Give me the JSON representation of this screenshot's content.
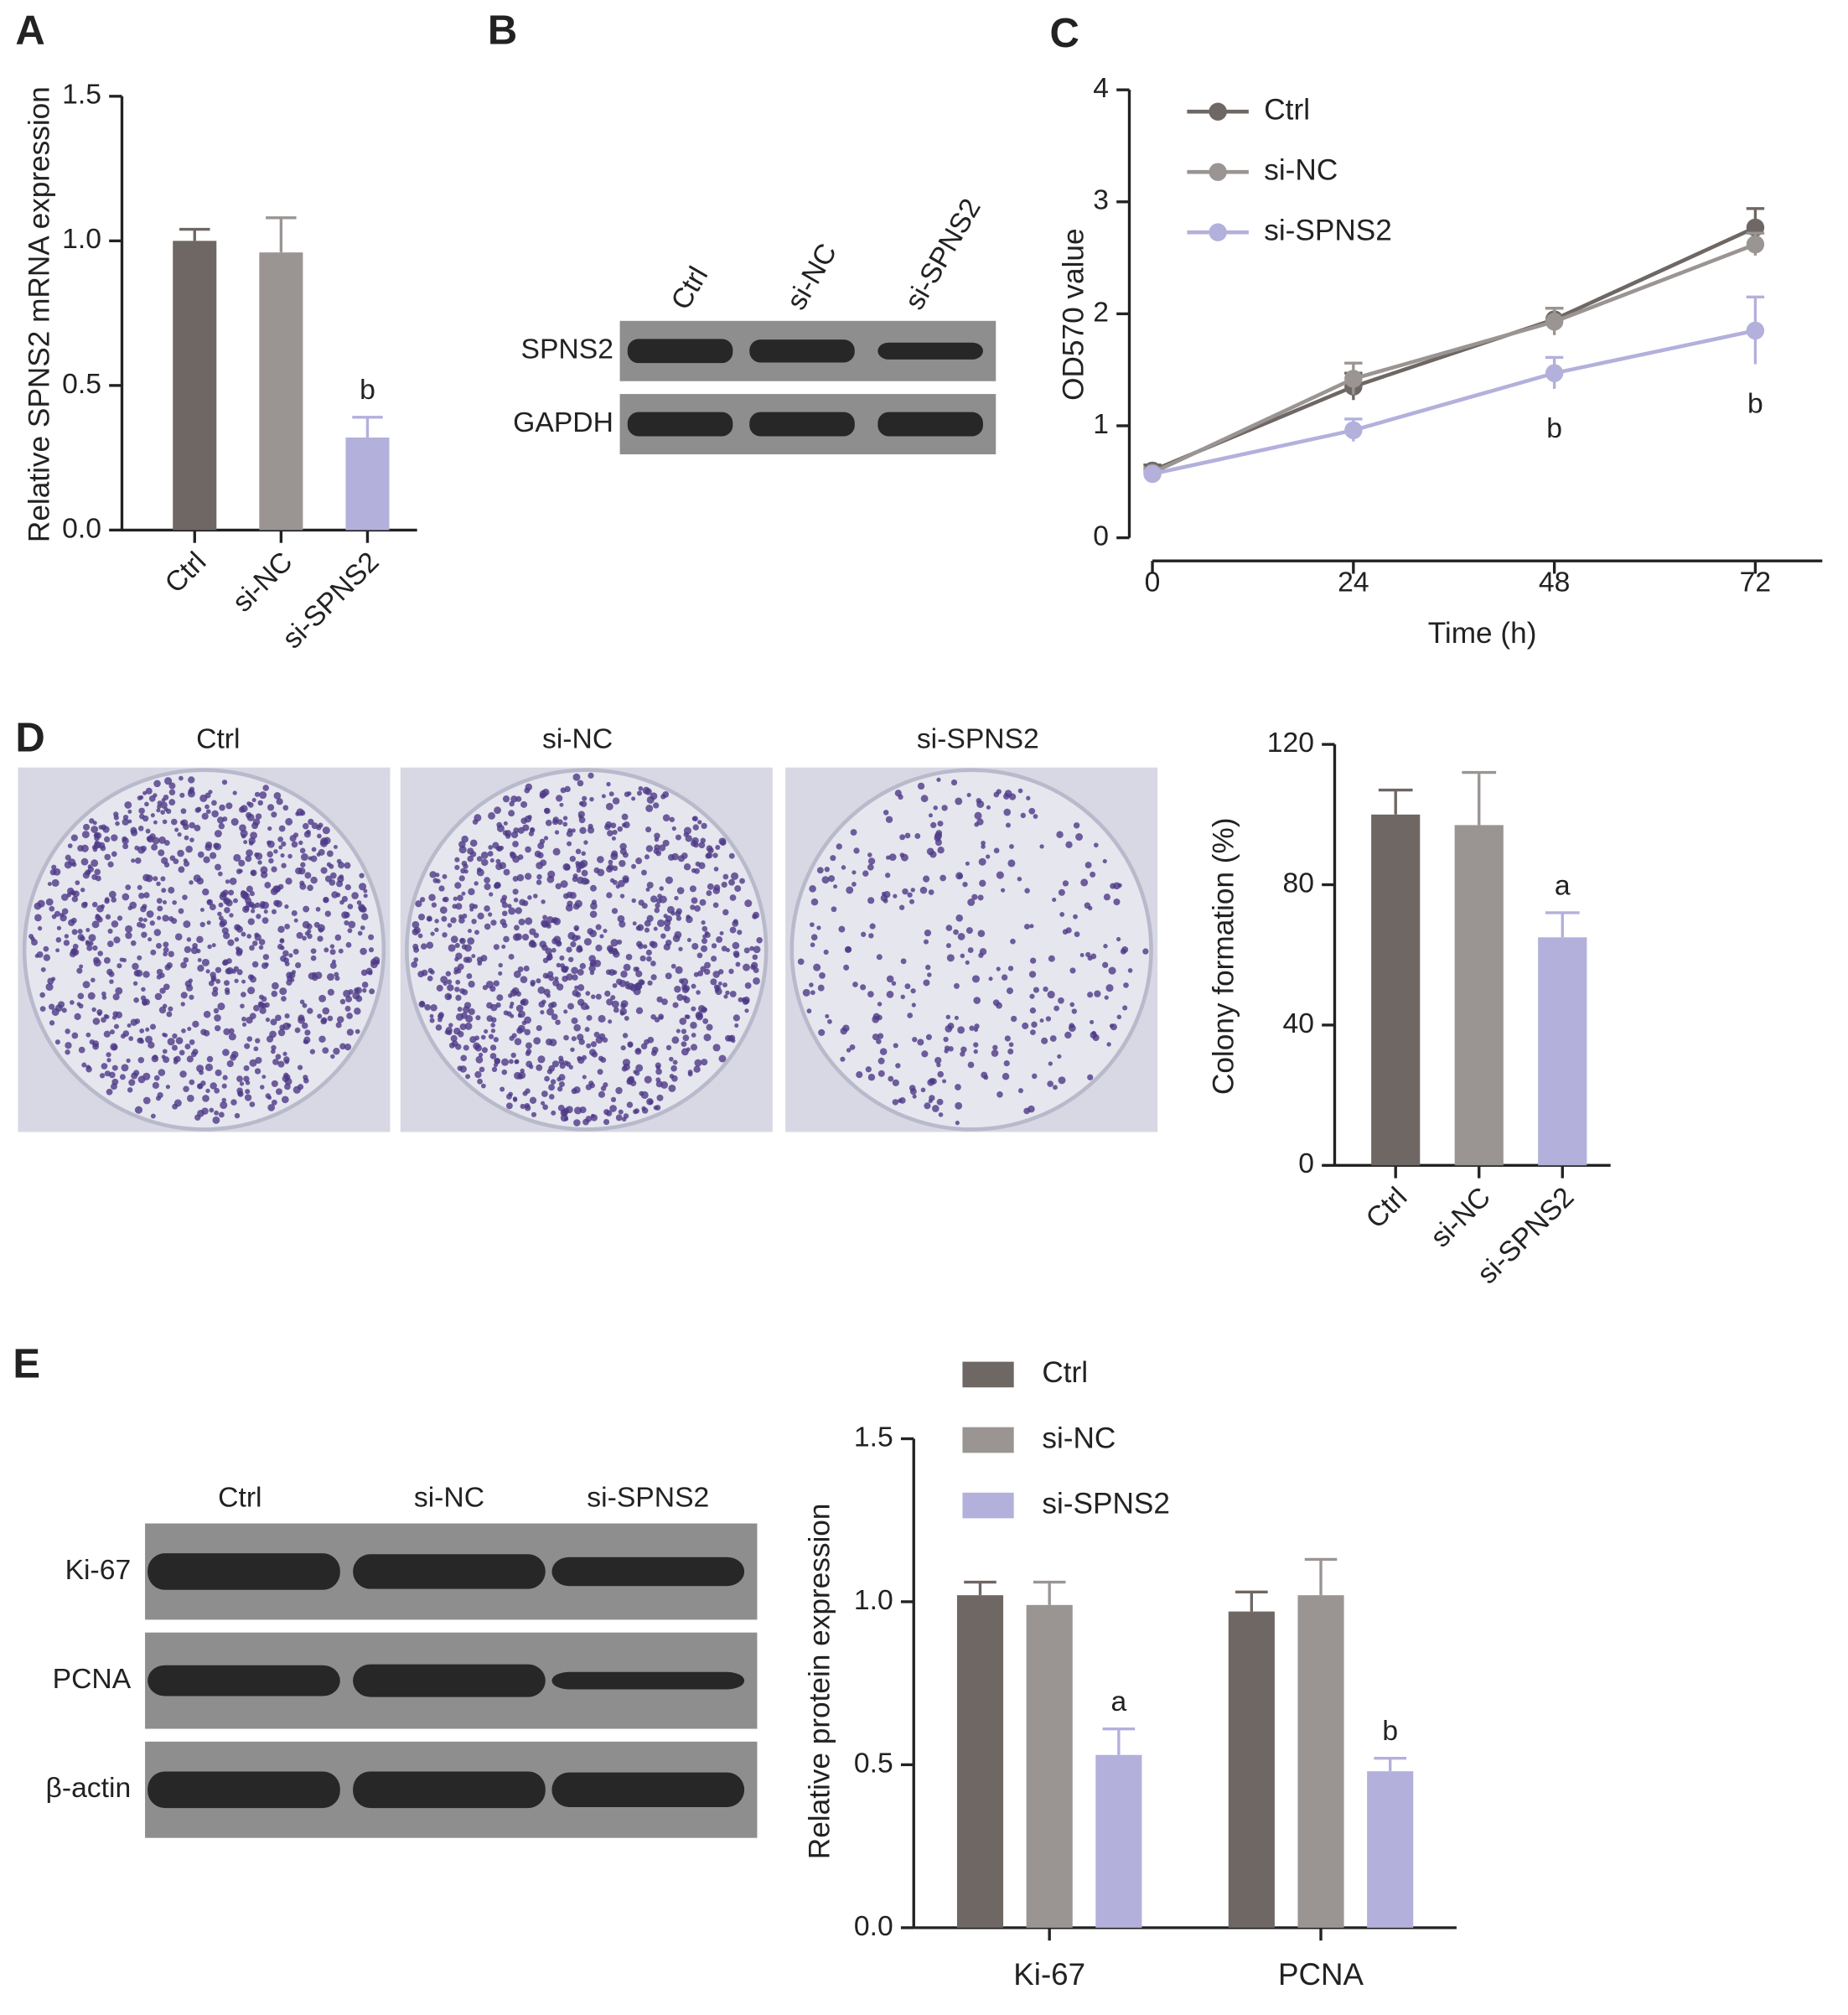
{
  "panel_labels": [
    "A",
    "B",
    "C",
    "D",
    "E"
  ],
  "blot_b": {
    "lanes": [
      "Ctrl",
      "si-NC",
      "si-SPNS2"
    ],
    "rows": [
      "SPNS2",
      "GAPDH"
    ]
  },
  "colony_images": {
    "labels": [
      "Ctrl",
      "si-NC",
      "si-SPNS2"
    ]
  },
  "blot_e": {
    "lanes": [
      "Ctrl",
      "si-NC",
      "si-SPNS2"
    ],
    "rows": [
      "Ki-67",
      "PCNA",
      "β-actin"
    ]
  },
  "chart_data": [
    {
      "type": "bar",
      "ylabel": "Relative SPNS2 mRNA expression",
      "categories": [
        "Ctrl",
        "si-NC",
        "si-SPNS2"
      ],
      "values": [
        1.0,
        0.96,
        0.32
      ],
      "errors": [
        0.04,
        0.12,
        0.07
      ],
      "annotations": [
        null,
        null,
        "b"
      ],
      "colors": [
        "#6e6763",
        "#9a9593",
        "#b3b0dc"
      ],
      "ylim": [
        0,
        1.5
      ],
      "yticks": [
        {
          "value": 0,
          "label": "0.0"
        },
        0.5,
        {
          "value": 1,
          "label": "1.0"
        },
        1.5
      ]
    },
    {
      "type": "line",
      "xlabel": "Time (h)",
      "ylabel": "OD570 value",
      "x": [
        0,
        24,
        48,
        72
      ],
      "xlim": [
        0,
        80
      ],
      "xticks": [
        0,
        24,
        48,
        72
      ],
      "ylim": [
        0,
        4
      ],
      "yticks": [
        0,
        1,
        2,
        3,
        4
      ],
      "series": [
        {
          "name": "Ctrl",
          "color": "#6e6763",
          "values": [
            0.6,
            1.35,
            1.95,
            2.77
          ],
          "errors": [
            0.05,
            0.12,
            0.1,
            0.17
          ],
          "annotations": [
            null,
            null,
            null,
            null
          ]
        },
        {
          "name": "si-NC",
          "color": "#9a9593",
          "values": [
            0.58,
            1.42,
            1.93,
            2.62
          ],
          "errors": [
            0.04,
            0.14,
            0.12,
            0.1
          ],
          "annotations": [
            null,
            null,
            null,
            null
          ]
        },
        {
          "name": "si-SPNS2",
          "color": "#b3b0dc",
          "values": [
            0.57,
            0.96,
            1.47,
            1.85
          ],
          "errors": [
            0.03,
            0.1,
            0.14,
            0.3
          ],
          "annotations": [
            null,
            null,
            "b",
            "b"
          ]
        }
      ]
    },
    {
      "type": "bar",
      "ylabel": "Colony formation (%)",
      "categories": [
        "Ctrl",
        "si-NC",
        "si-SPNS2"
      ],
      "values": [
        100,
        97,
        65
      ],
      "errors": [
        7,
        15,
        7
      ],
      "annotations": [
        null,
        null,
        "a"
      ],
      "colors": [
        "#6e6763",
        "#9a9593",
        "#b3b0dc"
      ],
      "ylim": [
        0,
        120
      ],
      "yticks": [
        0,
        40,
        80,
        120
      ]
    },
    {
      "type": "bar",
      "ylabel": "Relative protein expression",
      "categories": [
        "Ki-67",
        "PCNA"
      ],
      "ylim": [
        0,
        1.5
      ],
      "yticks": [
        {
          "value": 0,
          "label": "0.0"
        },
        0.5,
        {
          "value": 1,
          "label": "1.0"
        },
        1.5
      ],
      "series": [
        {
          "name": "Ctrl",
          "color": "#6e6763",
          "values": [
            1.02,
            0.97
          ],
          "errors": [
            0.04,
            0.06
          ],
          "annotations": [
            null,
            null
          ]
        },
        {
          "name": "si-NC",
          "color": "#9a9593",
          "values": [
            0.99,
            1.02
          ],
          "errors": [
            0.07,
            0.11
          ],
          "annotations": [
            null,
            null
          ]
        },
        {
          "name": "si-SPNS2",
          "color": "#b3b0dc",
          "values": [
            0.53,
            0.48
          ],
          "errors": [
            0.08,
            0.04
          ],
          "annotations": [
            "a",
            "b"
          ]
        }
      ]
    }
  ]
}
